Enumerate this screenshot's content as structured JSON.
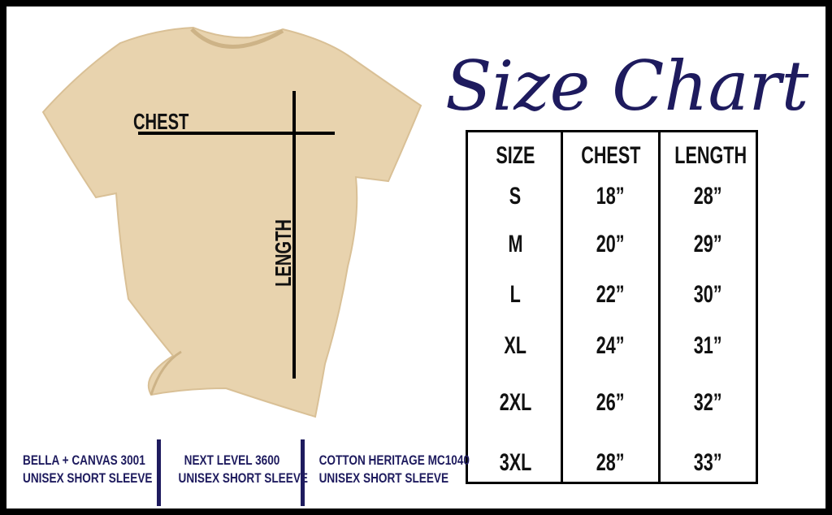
{
  "title": "Size Chart",
  "colors": {
    "accent": "#1e1b5e",
    "shirt": "#e8d3ae",
    "frame": "#000000"
  },
  "shirt_labels": {
    "chest": "CHEST",
    "length": "LENGTH"
  },
  "table": {
    "headers": [
      "SIZE",
      "CHEST",
      "LENGTH"
    ],
    "rows": [
      [
        "S",
        "18”",
        "28”"
      ],
      [
        "M",
        "20”",
        "29”"
      ],
      [
        "L",
        "22”",
        "30”"
      ],
      [
        "XL",
        "24”",
        "31”"
      ],
      [
        "2XL",
        "26”",
        "32”"
      ],
      [
        "3XL",
        "28”",
        "33”"
      ]
    ]
  },
  "brands": [
    {
      "line1": "BELLA + CANVAS 3001",
      "line2": "UNISEX SHORT SLEEVE"
    },
    {
      "line1": "NEXT LEVEL 3600",
      "line2": "UNISEX SHORT SLEEVE"
    },
    {
      "line1": "COTTON HERITAGE MC1040",
      "line2": "UNISEX SHORT SLEEVE"
    }
  ]
}
